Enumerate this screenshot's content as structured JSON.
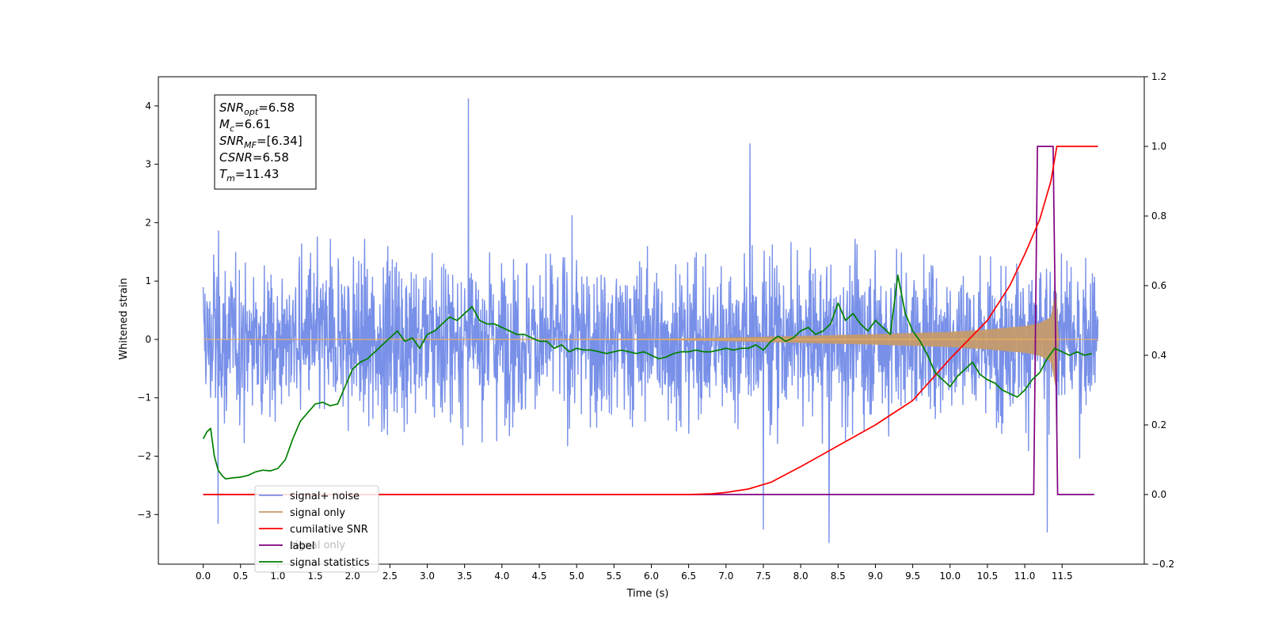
{
  "chart_data": {
    "type": "line",
    "xlabel": "Time (s)",
    "ylabel": "Whitened strain",
    "xlim": [
      -0.6,
      12.6
    ],
    "ylim": [
      -3.85,
      4.5
    ],
    "y2lim": [
      -0.2,
      1.2
    ],
    "x_ticks": [
      0.0,
      0.5,
      1.0,
      1.5,
      2.0,
      2.5,
      3.0,
      3.5,
      4.0,
      4.5,
      5.0,
      5.5,
      6.0,
      6.5,
      7.0,
      7.5,
      8.0,
      8.5,
      9.0,
      9.5,
      10.0,
      10.5,
      11.0,
      11.5
    ],
    "x_tick_labels": [
      "0.0",
      "0.5",
      "1.0",
      "1.5",
      "2.0",
      "2.5",
      "3.0",
      "3.5",
      "4.0",
      "4.5",
      "5.0",
      "5.5",
      "6.0",
      "6.5",
      "7.0",
      "7.5",
      "8.0",
      "8.5",
      "9.0",
      "9.5",
      "10.0",
      "10.5",
      "11.0",
      "11.5"
    ],
    "y_ticks": [
      -3,
      -2,
      -1,
      0,
      1,
      2,
      3,
      4
    ],
    "y_tick_labels": [
      "−3",
      "−2",
      "−1",
      "0",
      "1",
      "2",
      "3",
      "4"
    ],
    "y2_ticks": [
      -0.2,
      0.0,
      0.2,
      0.4,
      0.6,
      0.8,
      1.0,
      1.2
    ],
    "y2_tick_labels": [
      "−0.2",
      "0.0",
      "0.2",
      "0.4",
      "0.6",
      "0.8",
      "1.0",
      "1.2"
    ],
    "grid": false,
    "legend_position": "lower-left",
    "colors": {
      "signal_noise": "#7890e8",
      "signal_only": "#c59a6b",
      "cumulative_snr": "#ff0000",
      "label": "#800080",
      "signal_statistics": "#008000"
    },
    "annotation_lines": [
      {
        "name": "SNR",
        "sub": "opt",
        "rest": "=6.58"
      },
      {
        "name": "M",
        "sub": "c",
        "rest": "=6.61"
      },
      {
        "name": "SNR",
        "sub": "MF",
        "rest": "=[6.34]"
      },
      {
        "name": "CSNR",
        "sub": "",
        "rest": "=6.58"
      },
      {
        "name": "T",
        "sub": "m",
        "rest": "=11.43"
      }
    ],
    "noise": {
      "t_start": 0.0,
      "t_end": 11.98,
      "samples": 2400,
      "envelope": [
        -2.5,
        2.7
      ],
      "extremes": [
        {
          "x": 3.55,
          "y": 4.12
        },
        {
          "x": 7.32,
          "y": 3.35
        },
        {
          "x": 0.2,
          "y": -3.15
        },
        {
          "x": 8.38,
          "y": -3.48
        },
        {
          "x": 7.5,
          "y": -3.25
        },
        {
          "x": 11.3,
          "y": -3.3
        }
      ]
    },
    "signal_envelope": {
      "x": [
        0.0,
        6.0,
        7.0,
        8.0,
        9.0,
        10.0,
        10.5,
        11.0,
        11.2,
        11.35,
        11.42,
        11.45,
        11.98
      ],
      "amp": [
        0.0,
        0.01,
        0.03,
        0.06,
        0.09,
        0.13,
        0.17,
        0.23,
        0.28,
        0.38,
        0.88,
        0.0,
        0.0
      ]
    },
    "series": [
      {
        "name": "cumilative SNR",
        "axis": "right",
        "x": [
          0.0,
          6.5,
          6.8,
          7.0,
          7.3,
          7.6,
          8.0,
          8.5,
          9.0,
          9.5,
          10.0,
          10.5,
          10.8,
          11.0,
          11.2,
          11.35,
          11.43,
          11.98
        ],
        "y": [
          0.0,
          0.0,
          0.002,
          0.006,
          0.016,
          0.035,
          0.08,
          0.14,
          0.2,
          0.27,
          0.39,
          0.5,
          0.6,
          0.69,
          0.79,
          0.9,
          1.0,
          1.0
        ]
      },
      {
        "name": "label",
        "axis": "right",
        "x": [
          0.0,
          11.12,
          11.17,
          11.38,
          11.44,
          11.93
        ],
        "y": [
          0.0,
          0.0,
          1.0,
          1.0,
          0.0,
          0.0
        ]
      },
      {
        "name": "signal statistics",
        "axis": "right",
        "x": [
          0.0,
          0.05,
          0.1,
          0.15,
          0.2,
          0.25,
          0.3,
          0.4,
          0.5,
          0.6,
          0.7,
          0.8,
          0.9,
          1.0,
          1.1,
          1.2,
          1.3,
          1.4,
          1.5,
          1.6,
          1.7,
          1.8,
          1.9,
          2.0,
          2.1,
          2.2,
          2.3,
          2.4,
          2.5,
          2.6,
          2.7,
          2.8,
          2.9,
          3.0,
          3.1,
          3.2,
          3.3,
          3.4,
          3.5,
          3.6,
          3.7,
          3.8,
          3.9,
          4.0,
          4.1,
          4.2,
          4.3,
          4.4,
          4.5,
          4.6,
          4.7,
          4.8,
          4.9,
          5.0,
          5.1,
          5.2,
          5.3,
          5.4,
          5.5,
          5.6,
          5.7,
          5.8,
          5.9,
          6.0,
          6.1,
          6.2,
          6.3,
          6.4,
          6.5,
          6.6,
          6.7,
          6.8,
          6.9,
          7.0,
          7.1,
          7.2,
          7.3,
          7.4,
          7.5,
          7.6,
          7.7,
          7.8,
          7.9,
          8.0,
          8.1,
          8.2,
          8.3,
          8.4,
          8.5,
          8.6,
          8.7,
          8.8,
          8.9,
          9.0,
          9.1,
          9.2,
          9.3,
          9.4,
          9.5,
          9.6,
          9.7,
          9.8,
          9.9,
          10.0,
          10.1,
          10.2,
          10.3,
          10.4,
          10.5,
          10.6,
          10.7,
          10.8,
          10.9,
          11.0,
          11.1,
          11.2,
          11.3,
          11.4,
          11.5,
          11.6,
          11.7,
          11.8,
          11.9
        ],
        "y": [
          0.16,
          0.18,
          0.19,
          0.11,
          0.07,
          0.055,
          0.045,
          0.048,
          0.05,
          0.055,
          0.065,
          0.07,
          0.068,
          0.075,
          0.1,
          0.16,
          0.21,
          0.235,
          0.26,
          0.265,
          0.255,
          0.26,
          0.31,
          0.36,
          0.38,
          0.39,
          0.41,
          0.43,
          0.45,
          0.47,
          0.44,
          0.45,
          0.42,
          0.46,
          0.47,
          0.49,
          0.51,
          0.5,
          0.52,
          0.54,
          0.5,
          0.49,
          0.49,
          0.48,
          0.47,
          0.46,
          0.46,
          0.45,
          0.44,
          0.44,
          0.42,
          0.43,
          0.41,
          0.42,
          0.415,
          0.415,
          0.41,
          0.405,
          0.41,
          0.415,
          0.41,
          0.405,
          0.41,
          0.4,
          0.39,
          0.395,
          0.405,
          0.41,
          0.41,
          0.415,
          0.41,
          0.41,
          0.415,
          0.42,
          0.415,
          0.42,
          0.42,
          0.43,
          0.415,
          0.44,
          0.455,
          0.44,
          0.45,
          0.47,
          0.48,
          0.46,
          0.47,
          0.49,
          0.55,
          0.5,
          0.52,
          0.49,
          0.47,
          0.5,
          0.48,
          0.46,
          0.63,
          0.52,
          0.47,
          0.44,
          0.4,
          0.35,
          0.33,
          0.31,
          0.34,
          0.36,
          0.38,
          0.345,
          0.33,
          0.32,
          0.3,
          0.29,
          0.28,
          0.3,
          0.33,
          0.35,
          0.39,
          0.42,
          0.41,
          0.4,
          0.41,
          0.4,
          0.405
        ]
      }
    ],
    "legend": [
      {
        "label": "signal+ noise",
        "key": "signal_noise"
      },
      {
        "label": "signal only",
        "key": "signal_only"
      },
      {
        "label": "cumilative SNR",
        "key": "cumulative_snr"
      },
      {
        "label": "label",
        "key": "label"
      },
      {
        "label": "signal statistics",
        "key": "signal_statistics"
      }
    ],
    "hidden_legend_ghost": "signal only"
  }
}
